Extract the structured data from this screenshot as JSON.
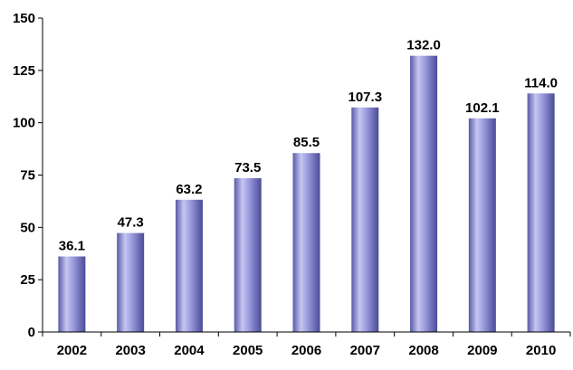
{
  "chart_data": {
    "type": "bar",
    "categories": [
      "2002",
      "2003",
      "2004",
      "2005",
      "2006",
      "2007",
      "2008",
      "2009",
      "2010"
    ],
    "values": [
      36.1,
      47.3,
      63.2,
      73.5,
      85.5,
      107.3,
      132.0,
      102.1,
      114.0
    ],
    "data_labels": [
      "36.1",
      "47.3",
      "63.2",
      "73.5",
      "85.5",
      "107.3",
      "132.0",
      "102.1",
      "114.0"
    ],
    "y_ticks": [
      "0",
      "25",
      "50",
      "75",
      "100",
      "125",
      "150"
    ],
    "ylim": [
      0,
      150
    ],
    "title": "",
    "xlabel": "",
    "ylabel": "",
    "grid": false,
    "legend": "none",
    "bar_color": "#8f8fd9"
  }
}
